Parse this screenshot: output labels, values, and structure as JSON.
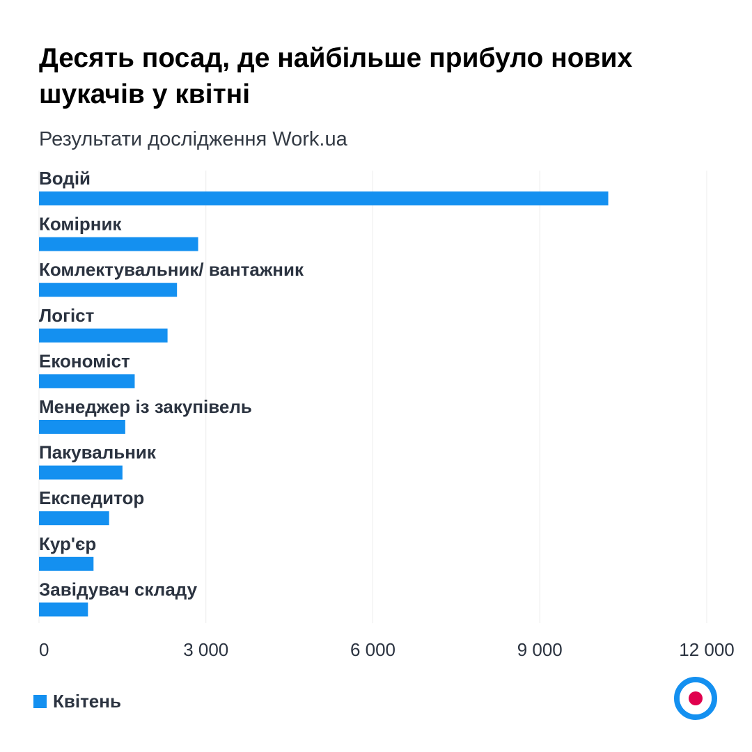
{
  "title": "Десять посад, де найбільше прибуло нових шукачів у квітні",
  "subtitle": "Результати дослідження Work.ua",
  "chart_data": {
    "type": "bar",
    "orientation": "horizontal",
    "categories": [
      "Водій",
      "Комірник",
      "Комлектувальник/ вантажник",
      "Логіст",
      "Економіст",
      "Менеджер із закупівель",
      "Пакувальник",
      "Експедитор",
      "Кур'єр",
      "Завідувач складу"
    ],
    "series": [
      {
        "name": "Квітень",
        "values": [
          10230,
          2860,
          2480,
          2310,
          1720,
          1550,
          1500,
          1260,
          980,
          880
        ]
      }
    ],
    "xlim": [
      0,
      12000
    ],
    "xticks": [
      0,
      3000,
      6000,
      9000,
      12000
    ],
    "xtick_labels": [
      "0",
      "3 000",
      "6 000",
      "9 000",
      "12 000"
    ],
    "grid": true,
    "legend_position": "bottom-left",
    "bar_color": "#1490f0"
  },
  "legend": {
    "label": "Квітень"
  },
  "logo": {
    "icon": "workua-target-logo",
    "ring_color": "#1490f0",
    "dot_color": "#e0004d"
  }
}
